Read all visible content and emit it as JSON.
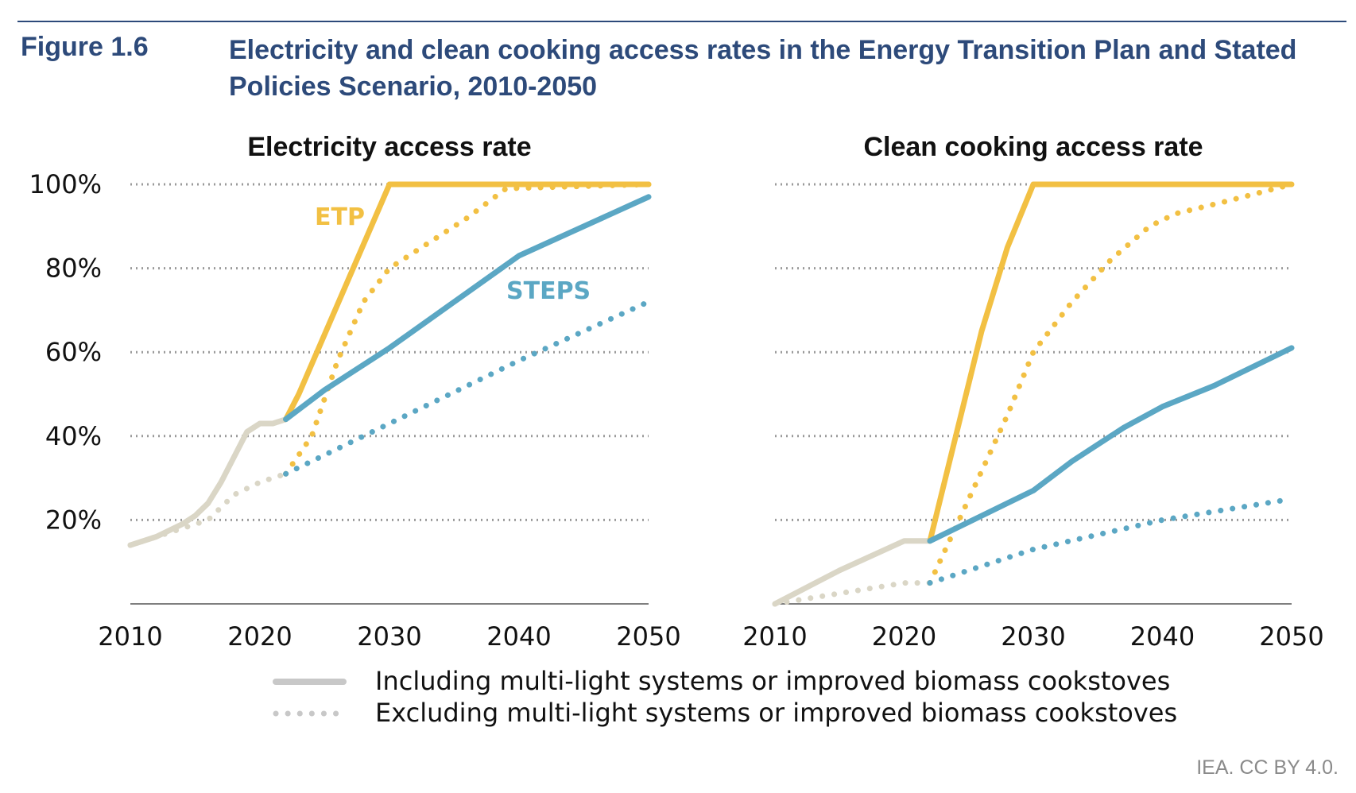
{
  "figure": {
    "number": "Figure 1.6",
    "title": "Electricity and clean cooking access rates in the Energy Transition Plan and Stated Policies Scenario, 2010-2050"
  },
  "credit": "IEA. CC BY 4.0.",
  "colors": {
    "etp": "#f2c043",
    "steps": "#5ba7c4",
    "historical": "#dad6c6",
    "grid": "#9a9a9a",
    "title": "#2d4a7a"
  },
  "legend": {
    "items": [
      {
        "label": "Including multi-light systems or improved biomass cookstoves",
        "style": "solid"
      },
      {
        "label": "Excluding multi-light systems or improved biomass cookstoves",
        "style": "dotted"
      }
    ]
  },
  "chart_data": [
    {
      "type": "line",
      "title": "Electricity access rate",
      "xlim": [
        2010,
        2050
      ],
      "ylim": [
        0,
        100
      ],
      "x_ticks": [
        "2010",
        "2020",
        "2030",
        "2040",
        "2050"
      ],
      "y_ticks": [
        "20%",
        "40%",
        "60%",
        "80%",
        "100%"
      ],
      "grid": "horizontal dotted",
      "series": [
        {
          "key": "hist_incl",
          "color": "historical",
          "style": "solid",
          "x": [
            2010,
            2012,
            2014,
            2015,
            2016,
            2017,
            2018,
            2019,
            2020,
            2021,
            2022
          ],
          "y": [
            14,
            16,
            19,
            21,
            24,
            29,
            35,
            41,
            43,
            43,
            44
          ]
        },
        {
          "key": "hist_excl",
          "color": "historical",
          "style": "dotted",
          "x": [
            2010,
            2012,
            2014,
            2016,
            2018,
            2020,
            2022
          ],
          "y": [
            14,
            16,
            18,
            20,
            26,
            29,
            31
          ]
        },
        {
          "key": "etp_incl",
          "name": "ETP",
          "color": "etp",
          "style": "solid",
          "x": [
            2022,
            2023,
            2030,
            2050
          ],
          "y": [
            44,
            50,
            100,
            100
          ]
        },
        {
          "key": "etp_excl",
          "color": "etp",
          "style": "dotted",
          "x": [
            2022,
            2024,
            2026,
            2028,
            2030,
            2033,
            2036,
            2039,
            2050
          ],
          "y": [
            31,
            40,
            58,
            72,
            80,
            86,
            92,
            99,
            100
          ]
        },
        {
          "key": "steps_incl",
          "name": "STEPS",
          "color": "steps",
          "style": "solid",
          "x": [
            2022,
            2025,
            2030,
            2035,
            2040,
            2045,
            2050
          ],
          "y": [
            44,
            51,
            61,
            72,
            83,
            90,
            97
          ]
        },
        {
          "key": "steps_excl",
          "color": "steps",
          "style": "dotted",
          "x": [
            2022,
            2030,
            2040,
            2050
          ],
          "y": [
            31,
            43,
            58,
            72
          ]
        }
      ]
    },
    {
      "type": "line",
      "title": "Clean cooking access rate",
      "xlim": [
        2010,
        2050
      ],
      "ylim": [
        0,
        100
      ],
      "x_ticks": [
        "2010",
        "2020",
        "2030",
        "2040",
        "2050"
      ],
      "y_ticks": [
        "20%",
        "40%",
        "60%",
        "80%",
        "100%"
      ],
      "grid": "horizontal dotted",
      "series": [
        {
          "key": "hist_incl",
          "color": "historical",
          "style": "solid",
          "x": [
            2010,
            2015,
            2020,
            2022
          ],
          "y": [
            0,
            8,
            15,
            15
          ]
        },
        {
          "key": "hist_excl",
          "color": "historical",
          "style": "dotted",
          "x": [
            2010,
            2014,
            2018,
            2020,
            2022
          ],
          "y": [
            0,
            2,
            4,
            5,
            5
          ]
        },
        {
          "key": "etp_incl",
          "color": "etp",
          "style": "solid",
          "x": [
            2022,
            2024,
            2026,
            2028,
            2030,
            2050
          ],
          "y": [
            15,
            40,
            65,
            85,
            100,
            100
          ]
        },
        {
          "key": "etp_excl",
          "color": "etp",
          "style": "dotted",
          "x": [
            2022,
            2025,
            2028,
            2030,
            2033,
            2036,
            2039,
            2041,
            2045,
            2050
          ],
          "y": [
            5,
            25,
            45,
            60,
            72,
            82,
            90,
            93,
            96,
            100
          ]
        },
        {
          "key": "steps_incl",
          "color": "steps",
          "style": "solid",
          "x": [
            2022,
            2026,
            2030,
            2033,
            2037,
            2040,
            2044,
            2050
          ],
          "y": [
            15,
            21,
            27,
            34,
            42,
            47,
            52,
            61
          ]
        },
        {
          "key": "steps_excl",
          "color": "steps",
          "style": "dotted",
          "x": [
            2022,
            2030,
            2040,
            2050
          ],
          "y": [
            5,
            13,
            20,
            25
          ]
        }
      ]
    }
  ],
  "annotations": [
    {
      "text": "ETP",
      "color": "etp"
    },
    {
      "text": "STEPS",
      "color": "steps"
    }
  ]
}
